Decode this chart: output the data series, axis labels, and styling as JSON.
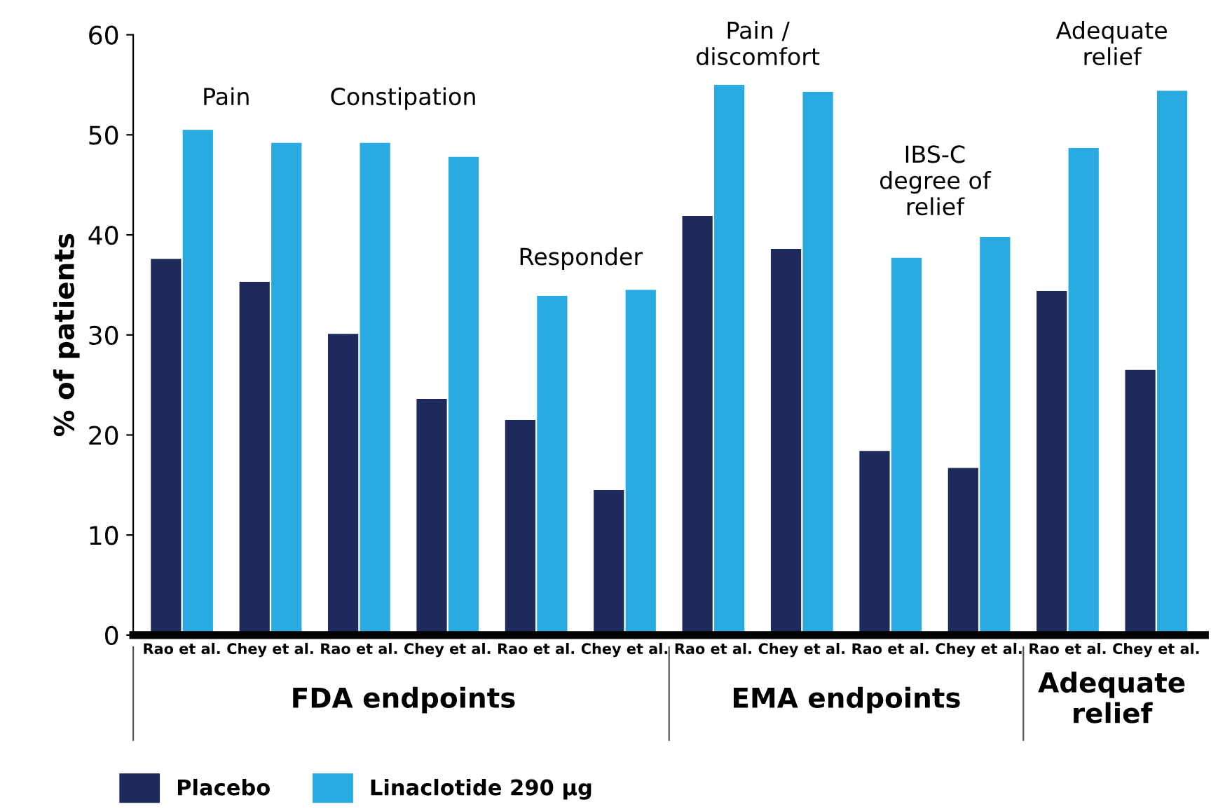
{
  "chart_data": {
    "type": "bar",
    "ylabel": "% of patients",
    "categories": [
      "Rao et al.",
      "Chey et al.",
      "Rao et al.",
      "Chey et al.",
      "Rao et al.",
      "Chey et al.",
      "Rao et al.",
      "Chey et al.",
      "Rao et al.",
      "Chey et al.",
      "Rao et al.",
      "Chey et al."
    ],
    "series": [
      {
        "name": "Placebo",
        "color": "#1f2a5c",
        "values": [
          37.6,
          35.3,
          30.1,
          23.6,
          21.5,
          14.5,
          41.9,
          38.6,
          18.4,
          16.7,
          34.4,
          26.5
        ]
      },
      {
        "name": "Linaclotide 290 μg",
        "color": "#29abe2",
        "values": [
          50.5,
          49.2,
          49.2,
          47.8,
          33.9,
          34.5,
          55,
          54.3,
          37.7,
          39.8,
          48.7,
          54.4
        ]
      }
    ],
    "ylim": [
      0,
      60
    ],
    "yticks": [
      0,
      10,
      20,
      30,
      40,
      50,
      60
    ],
    "grid": false,
    "legend": "bottom left",
    "annotations": [
      "Pain",
      "Constipation",
      "Responder",
      "Pain /\ndiscomfort",
      "IBS-C\ndegree of\nrelief",
      "Adequate\nrelief",
      "FDA endpoints",
      "EMA endpoints",
      "Adequate\nrelief"
    ]
  }
}
